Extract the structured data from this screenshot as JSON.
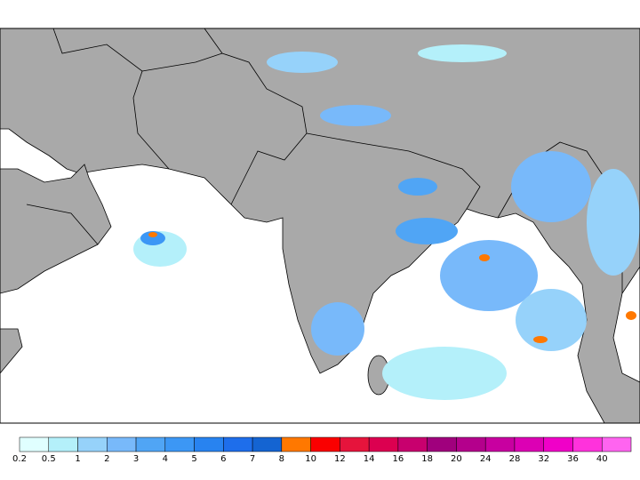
{
  "colorbar": {
    "levels": [
      0.2,
      0.5,
      1,
      2,
      3,
      4,
      5,
      6,
      7,
      8,
      10,
      12,
      14,
      16,
      18,
      20,
      24,
      28,
      32,
      36,
      40
    ],
    "colors": [
      "#e0ffff",
      "#b4f0fa",
      "#96d2fa",
      "#78b9fa",
      "#50a5f5",
      "#3c97f5",
      "#2883f0",
      "#1e6eeb",
      "#1464d2",
      "#ff7800",
      "#fa0000",
      "#e6143c",
      "#dc0050",
      "#c8006e",
      "#a0007d",
      "#b4008c",
      "#c800a0",
      "#dc00b4",
      "#f000c8",
      "#ff32dc",
      "#ff64f0"
    ]
  }
}
